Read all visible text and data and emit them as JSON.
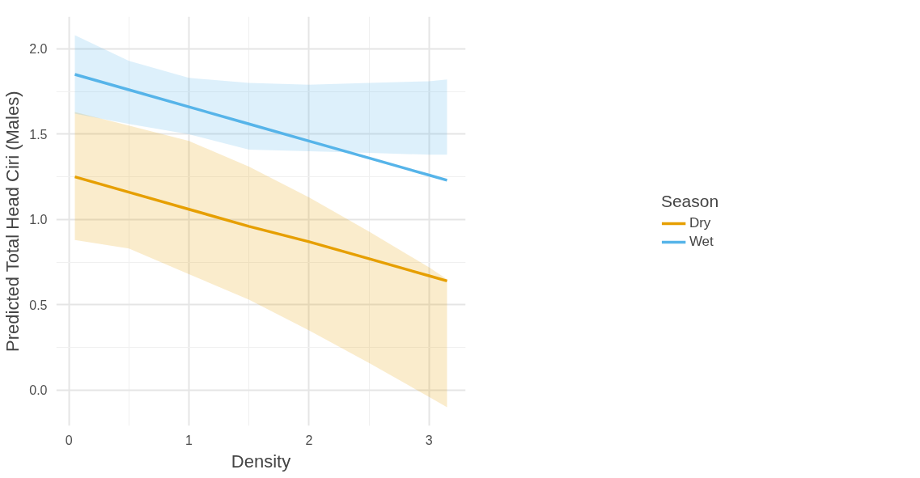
{
  "chart_data": {
    "type": "line",
    "xlabel": "Density",
    "ylabel": "Predicted Total Head Ciri (Males)",
    "legend_title": "Season",
    "legend": "right",
    "grid": true,
    "x": [
      0.05,
      0.5,
      1,
      1.5,
      2,
      2.5,
      3,
      3.15
    ],
    "series": [
      {
        "name": "Dry",
        "color": "#e69f00",
        "values": [
          1.25,
          1.16,
          1.06,
          0.96,
          0.87,
          0.77,
          0.67,
          0.64
        ],
        "lower": [
          0.88,
          0.83,
          0.68,
          0.53,
          0.35,
          0.16,
          -0.04,
          -0.1
        ],
        "upper": [
          1.63,
          1.55,
          1.46,
          1.31,
          1.13,
          0.93,
          0.72,
          0.65
        ]
      },
      {
        "name": "Wet",
        "color": "#56b4e9",
        "values": [
          1.85,
          1.76,
          1.66,
          1.56,
          1.46,
          1.36,
          1.26,
          1.23
        ],
        "lower": [
          1.62,
          1.56,
          1.5,
          1.41,
          1.4,
          1.39,
          1.38,
          1.38
        ],
        "upper": [
          2.08,
          1.93,
          1.83,
          1.8,
          1.79,
          1.8,
          1.81,
          1.82
        ]
      }
    ],
    "xlim": [
      -0.105,
      3.305
    ],
    "ylim": [
      -0.209,
      2.189
    ],
    "xticks": [
      0,
      1,
      2,
      3
    ],
    "yticks": [
      {
        "value": 0,
        "label": "0.0"
      },
      {
        "value": 0.5,
        "label": "0.5"
      },
      {
        "value": 1,
        "label": "1.0"
      },
      {
        "value": 1.5,
        "label": "1.5"
      },
      {
        "value": 2,
        "label": "2.0"
      }
    ]
  }
}
